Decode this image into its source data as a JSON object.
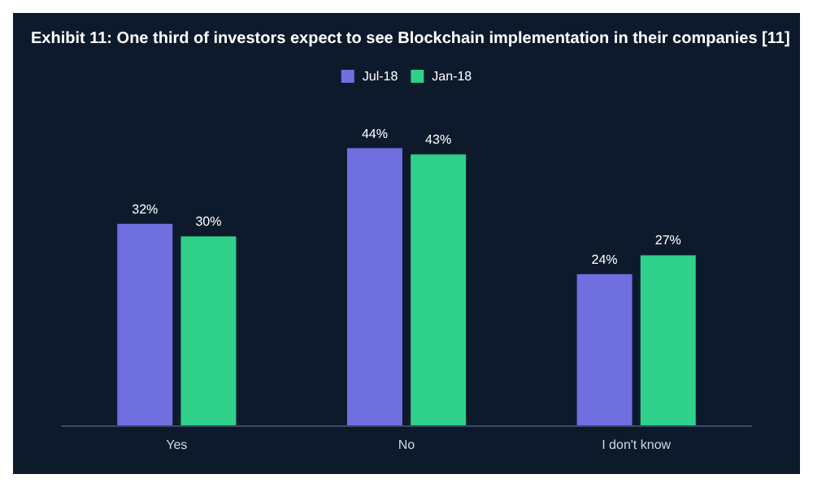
{
  "chart_data": {
    "type": "bar",
    "title": "Exhibit 11: One third of investors expect to see Blockchain implementation in their companies [11]",
    "categories": [
      "Yes",
      "No",
      "I don't know"
    ],
    "series": [
      {
        "name": "Jul-18",
        "color": "#6f6fe0",
        "values": [
          32,
          44,
          24
        ],
        "value_labels": [
          "32%",
          "44%",
          "24%"
        ]
      },
      {
        "name": "Jan-18",
        "color": "#2fd08a",
        "values": [
          30,
          43,
          27
        ],
        "value_labels": [
          "30%",
          "43%",
          "27%"
        ]
      }
    ],
    "legend": "top",
    "tick_labels": "x"
  }
}
